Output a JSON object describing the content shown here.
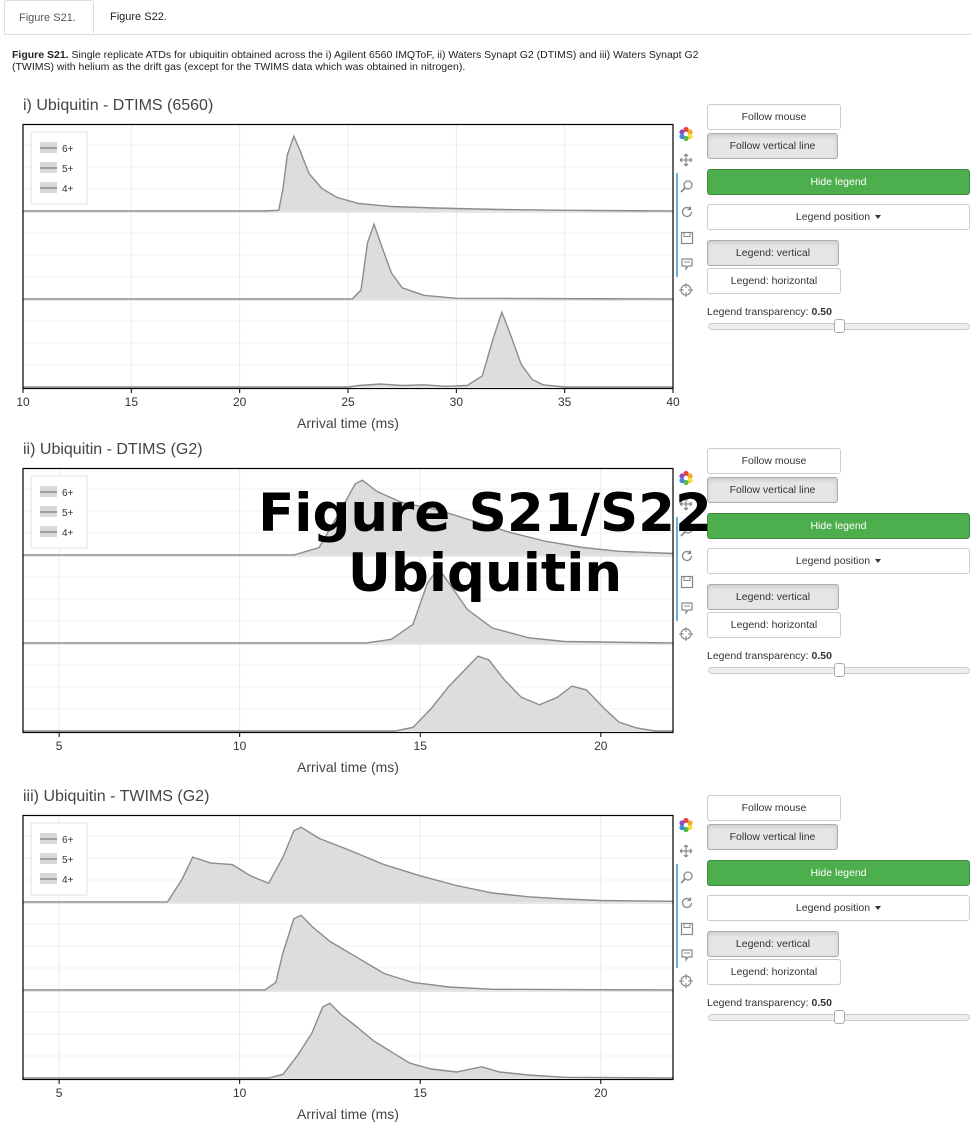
{
  "tabs": [
    {
      "label": "Figure S21.",
      "active": true
    },
    {
      "label": "Figure S22.",
      "active": false
    }
  ],
  "caption": {
    "bold": "Figure S21.",
    "text": " Single replicate ATDs for ubiquitin obtained across the i) Agilent 6560 IMQToF, ii) Waters Synapt G2 (DTIMS) and iii) Waters Synapt G2 (TWIMS) with helium as the drift gas (except for the TWIMS data which was obtained in nitrogen)."
  },
  "overlay": {
    "line1": "Figure S21/S22",
    "line2": "Ubiquitin"
  },
  "controls": {
    "follow_mouse": "Follow mouse",
    "follow_vertical": "Follow vertical line",
    "hide_legend": "Hide legend",
    "legend_position": "Legend position",
    "legend_vertical": "Legend: vertical",
    "legend_horizontal": "Legend: horizontal",
    "transparency_label": "Legend transparency:",
    "transparency_value": "0.50",
    "transparency": 0.5
  },
  "toolbar_icons": [
    "bokeh-logo-icon",
    "pan-icon",
    "zoom-icon",
    "reset-icon",
    "save-icon",
    "hover-icon",
    "crosshair-icon"
  ],
  "colors": {
    "line": "#8c8c8c",
    "fill": "#d9d9d9",
    "accent_green": "#4cae4c"
  },
  "chart_data": [
    {
      "type": "area",
      "title": "i) Ubiquitin - DTIMS (6560)",
      "xlabel": "Arrival time (ms)",
      "xlim": [
        10,
        40
      ],
      "xticks": [
        10,
        15,
        20,
        25,
        30,
        35,
        40
      ],
      "legend": [
        "6+",
        "5+",
        "4+"
      ],
      "series": [
        {
          "name": "6+",
          "points": [
            [
              10,
              0
            ],
            [
              21,
              0
            ],
            [
              21.8,
              0.01
            ],
            [
              22,
              0.3
            ],
            [
              22.2,
              0.75
            ],
            [
              22.5,
              1.0
            ],
            [
              22.8,
              0.8
            ],
            [
              23.2,
              0.5
            ],
            [
              23.8,
              0.3
            ],
            [
              24.5,
              0.18
            ],
            [
              25.5,
              0.1
            ],
            [
              27,
              0.06
            ],
            [
              29,
              0.04
            ],
            [
              32,
              0.02
            ],
            [
              35,
              0.01
            ],
            [
              40,
              0
            ]
          ]
        },
        {
          "name": "5+",
          "points": [
            [
              10,
              0
            ],
            [
              25.2,
              0
            ],
            [
              25.6,
              0.12
            ],
            [
              25.9,
              0.75
            ],
            [
              26.2,
              1.0
            ],
            [
              26.5,
              0.75
            ],
            [
              27,
              0.35
            ],
            [
              27.5,
              0.15
            ],
            [
              28.5,
              0.05
            ],
            [
              30,
              0.01
            ],
            [
              40,
              0
            ]
          ]
        },
        {
          "name": "4+",
          "points": [
            [
              10,
              0
            ],
            [
              25,
              0
            ],
            [
              25.5,
              0.02
            ],
            [
              26.5,
              0.04
            ],
            [
              27.5,
              0.02
            ],
            [
              28.5,
              0.03
            ],
            [
              29.5,
              0.01
            ],
            [
              30.5,
              0.02
            ],
            [
              31.2,
              0.15
            ],
            [
              31.7,
              0.65
            ],
            [
              32.1,
              1.0
            ],
            [
              32.5,
              0.7
            ],
            [
              33,
              0.3
            ],
            [
              33.5,
              0.1
            ],
            [
              34,
              0.03
            ],
            [
              35,
              0
            ],
            [
              40,
              0
            ]
          ]
        }
      ]
    },
    {
      "type": "area",
      "title": "ii) Ubiquitin - DTIMS (G2)",
      "xlabel": "Arrival time (ms)",
      "xlim": [
        4,
        22
      ],
      "xticks": [
        5,
        10,
        15,
        20
      ],
      "legend": [
        "6+",
        "5+",
        "4+"
      ],
      "series": [
        {
          "name": "6+",
          "points": [
            [
              4,
              0
            ],
            [
              11.5,
              0
            ],
            [
              12.2,
              0.1
            ],
            [
              12.8,
              0.6
            ],
            [
              13.2,
              0.95
            ],
            [
              13.4,
              1.0
            ],
            [
              13.8,
              0.85
            ],
            [
              14.5,
              0.7
            ],
            [
              15.5,
              0.6
            ],
            [
              16.5,
              0.45
            ],
            [
              17.5,
              0.3
            ],
            [
              18.5,
              0.18
            ],
            [
              19.5,
              0.1
            ],
            [
              20.5,
              0.05
            ],
            [
              22,
              0.02
            ]
          ]
        },
        {
          "name": "5+",
          "points": [
            [
              4,
              0
            ],
            [
              13.5,
              0
            ],
            [
              14.2,
              0.05
            ],
            [
              14.8,
              0.25
            ],
            [
              15.2,
              0.8
            ],
            [
              15.5,
              1.0
            ],
            [
              15.8,
              0.8
            ],
            [
              16.3,
              0.45
            ],
            [
              17,
              0.2
            ],
            [
              18,
              0.07
            ],
            [
              19,
              0.02
            ],
            [
              22,
              0
            ]
          ]
        },
        {
          "name": "4+",
          "points": [
            [
              4,
              0
            ],
            [
              14.3,
              0
            ],
            [
              14.8,
              0.05
            ],
            [
              15.3,
              0.3
            ],
            [
              15.8,
              0.6
            ],
            [
              16.3,
              0.85
            ],
            [
              16.6,
              1.0
            ],
            [
              16.9,
              0.95
            ],
            [
              17.3,
              0.7
            ],
            [
              17.8,
              0.45
            ],
            [
              18.3,
              0.35
            ],
            [
              18.8,
              0.45
            ],
            [
              19.2,
              0.6
            ],
            [
              19.6,
              0.55
            ],
            [
              20.1,
              0.3
            ],
            [
              20.5,
              0.12
            ],
            [
              21,
              0.04
            ],
            [
              21.5,
              0
            ],
            [
              22,
              0
            ]
          ]
        }
      ]
    },
    {
      "type": "area",
      "title": "iii) Ubiquitin - TWIMS (G2)",
      "xlabel": "Arrival time (ms)",
      "xlim": [
        4,
        22
      ],
      "xticks": [
        5,
        10,
        15,
        20
      ],
      "legend": [
        "6+",
        "5+",
        "4+"
      ],
      "series": [
        {
          "name": "6+",
          "points": [
            [
              4,
              0
            ],
            [
              8,
              0
            ],
            [
              8.4,
              0.3
            ],
            [
              8.7,
              0.6
            ],
            [
              9.2,
              0.52
            ],
            [
              9.8,
              0.5
            ],
            [
              10.3,
              0.35
            ],
            [
              10.8,
              0.25
            ],
            [
              11.2,
              0.6
            ],
            [
              11.5,
              0.95
            ],
            [
              11.7,
              1.0
            ],
            [
              12.2,
              0.85
            ],
            [
              13,
              0.7
            ],
            [
              14,
              0.5
            ],
            [
              15,
              0.35
            ],
            [
              16,
              0.22
            ],
            [
              17,
              0.12
            ],
            [
              18,
              0.07
            ],
            [
              19,
              0.04
            ],
            [
              20,
              0.02
            ],
            [
              22,
              0.01
            ]
          ]
        },
        {
          "name": "5+",
          "points": [
            [
              4,
              0
            ],
            [
              10.7,
              0
            ],
            [
              11,
              0.1
            ],
            [
              11.2,
              0.5
            ],
            [
              11.5,
              0.95
            ],
            [
              11.7,
              1.0
            ],
            [
              12,
              0.85
            ],
            [
              12.5,
              0.65
            ],
            [
              13.2,
              0.45
            ],
            [
              14,
              0.22
            ],
            [
              14.8,
              0.1
            ],
            [
              15.8,
              0.04
            ],
            [
              17,
              0.01
            ],
            [
              22,
              0
            ]
          ]
        },
        {
          "name": "4+",
          "points": [
            [
              4,
              0
            ],
            [
              10.8,
              0
            ],
            [
              11.2,
              0.05
            ],
            [
              11.6,
              0.3
            ],
            [
              12,
              0.6
            ],
            [
              12.3,
              0.95
            ],
            [
              12.5,
              1.0
            ],
            [
              12.8,
              0.85
            ],
            [
              13.2,
              0.7
            ],
            [
              13.7,
              0.5
            ],
            [
              14.2,
              0.35
            ],
            [
              14.7,
              0.2
            ],
            [
              15.3,
              0.12
            ],
            [
              16,
              0.08
            ],
            [
              16.7,
              0.15
            ],
            [
              17.2,
              0.08
            ],
            [
              18,
              0.04
            ],
            [
              19,
              0.01
            ],
            [
              22,
              0
            ]
          ]
        }
      ]
    }
  ]
}
